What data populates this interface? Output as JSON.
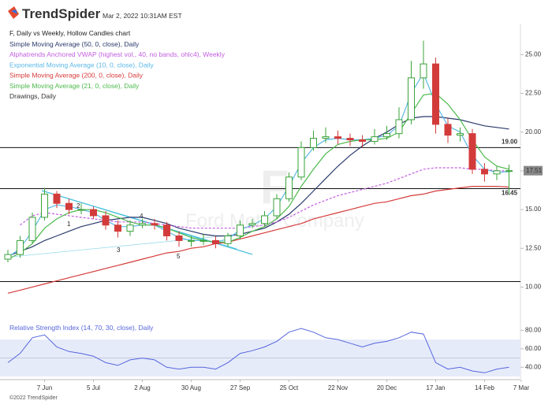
{
  "header": {
    "logo": "TrendSpider",
    "timestamp": "Mar 2, 2022 10:31AM EST",
    "chart_label": "F, Daily vs Weekly, Hollow Candles chart",
    "drawings_label": "Drawings, Daily",
    "watermark_symbol": "F",
    "watermark_name": "Ford Motor Company"
  },
  "footer": "©2022 TrendSpider",
  "chart_data": {
    "type": "candlestick",
    "categories": [
      null,
      null,
      null,
      "7 Jun",
      null,
      null,
      null,
      "5 Jul",
      null,
      null,
      null,
      "2 Aug",
      null,
      null,
      null,
      "30 Aug",
      null,
      null,
      null,
      "27 Sep",
      null,
      null,
      null,
      "25 Oct",
      null,
      null,
      null,
      "22 Nov",
      null,
      null,
      null,
      "20 Dec",
      null,
      null,
      null,
      "17 Jan",
      null,
      null,
      null,
      "14 Feb",
      null,
      null,
      "7 Mar"
    ],
    "open": [
      11.8,
      12.1,
      13.0,
      14.5,
      16.0,
      15.4,
      15.0,
      15.0,
      14.6,
      14.0,
      13.6,
      14.0,
      14.1,
      14.0,
      13.3,
      13.0,
      13.0,
      13.0,
      12.8,
      13.3,
      14.0,
      14.1,
      14.6,
      15.7,
      17.1,
      19.0,
      19.6,
      19.7,
      19.6,
      19.5,
      19.4,
      19.7,
      19.9,
      20.8,
      23.5,
      24.4,
      20.5,
      19.8,
      19.9,
      17.6,
      17.3,
      17.5,
      null
    ],
    "high": [
      12.4,
      13.3,
      14.8,
      16.4,
      16.2,
      15.7,
      15.4,
      15.2,
      14.9,
      14.3,
      14.3,
      14.4,
      14.4,
      14.2,
      13.6,
      13.3,
      13.4,
      13.3,
      13.5,
      14.3,
      14.4,
      14.9,
      16.0,
      17.4,
      19.4,
      20.1,
      20.3,
      20.1,
      19.9,
      19.8,
      20.2,
      20.4,
      21.6,
      24.6,
      25.9,
      24.8,
      20.9,
      20.3,
      20.2,
      18.0,
      17.8,
      17.9,
      null
    ],
    "low": [
      11.6,
      11.9,
      12.8,
      14.3,
      15.1,
      14.7,
      14.7,
      14.4,
      13.7,
      13.2,
      13.3,
      13.8,
      13.7,
      13.0,
      12.6,
      12.6,
      12.7,
      12.5,
      12.6,
      13.1,
      13.8,
      13.9,
      14.4,
      15.5,
      16.9,
      18.8,
      19.3,
      19.2,
      19.1,
      19.0,
      19.2,
      19.5,
      19.6,
      20.5,
      22.8,
      19.9,
      19.3,
      19.4,
      17.3,
      16.8,
      16.9,
      16.0,
      null
    ],
    "close": [
      12.1,
      13.0,
      14.5,
      16.0,
      15.4,
      15.0,
      15.0,
      14.6,
      14.0,
      13.6,
      14.0,
      14.1,
      14.0,
      13.3,
      13.0,
      13.0,
      13.0,
      12.8,
      13.3,
      14.0,
      14.1,
      14.6,
      15.7,
      17.1,
      19.0,
      19.6,
      19.7,
      19.6,
      19.5,
      19.4,
      19.7,
      19.9,
      20.8,
      23.5,
      24.4,
      20.5,
      19.8,
      19.9,
      17.6,
      17.3,
      17.5,
      17.51,
      null
    ],
    "up_color": "#3aa33a",
    "down_color": "#d33b3b",
    "series": [
      {
        "name": "Simple Moving Average (50, 0, close), Daily",
        "color": "#2b3a6c",
        "values": [
          12.0,
          12.3,
          12.6,
          13.0,
          13.3,
          13.6,
          13.9,
          14.1,
          14.3,
          14.4,
          14.5,
          14.5,
          14.3,
          14.1,
          13.8,
          13.6,
          13.4,
          13.3,
          13.3,
          13.4,
          13.6,
          13.8,
          14.2,
          14.7,
          15.4,
          16.2,
          17.0,
          17.8,
          18.5,
          19.1,
          19.6,
          20.0,
          20.5,
          20.9,
          21.0,
          21.0,
          20.9,
          20.8,
          20.6,
          20.4,
          20.3,
          20.2,
          null
        ]
      },
      {
        "name": "Alphatrends Anchored VWAP (highest vol., 40, no bands, ohlc4), Weekly",
        "color": "#c35ee0",
        "dashed": true,
        "values": [
          null,
          14.0,
          14.6,
          14.8,
          14.7,
          14.6,
          14.5,
          14.4,
          14.3,
          14.2,
          14.2,
          14.2,
          14.1,
          14.0,
          13.9,
          13.8,
          13.8,
          13.8,
          13.8,
          13.8,
          13.9,
          14.0,
          14.2,
          14.5,
          14.9,
          15.3,
          15.6,
          15.9,
          16.1,
          16.3,
          16.5,
          16.7,
          17.0,
          17.3,
          17.6,
          17.7,
          17.7,
          17.7,
          17.6,
          17.6,
          17.5,
          17.5,
          null
        ]
      },
      {
        "name": "Exponential Moving Average (10, 0, close), Daily",
        "color": "#5bb8e6",
        "values": [
          11.9,
          12.5,
          13.6,
          15.0,
          15.3,
          15.2,
          15.0,
          14.8,
          14.3,
          13.9,
          13.9,
          14.0,
          14.0,
          13.6,
          13.2,
          13.0,
          13.0,
          12.9,
          13.1,
          13.7,
          14.0,
          14.4,
          15.2,
          16.5,
          18.0,
          19.0,
          19.5,
          19.6,
          19.5,
          19.5,
          19.6,
          19.8,
          20.4,
          22.5,
          23.8,
          21.8,
          20.4,
          20.0,
          18.5,
          17.6,
          17.4,
          17.45,
          null
        ]
      },
      {
        "name": "Simple Moving Average (200, 0, close), Daily",
        "color": "#d63a3a",
        "values": [
          9.6,
          9.8,
          10.0,
          10.2,
          10.4,
          10.6,
          10.8,
          11.0,
          11.2,
          11.4,
          11.6,
          11.8,
          12.0,
          12.2,
          12.3,
          12.5,
          12.6,
          12.8,
          12.9,
          13.1,
          13.3,
          13.5,
          13.7,
          13.9,
          14.1,
          14.4,
          14.6,
          14.8,
          15.0,
          15.2,
          15.4,
          15.5,
          15.7,
          15.9,
          16.0,
          16.2,
          16.3,
          16.4,
          16.5,
          16.5,
          16.5,
          16.45,
          null
        ]
      },
      {
        "name": "Simple Moving Average (21, 0, close), Daily",
        "color": "#4dba4d",
        "values": [
          11.8,
          12.2,
          12.8,
          13.8,
          14.4,
          14.8,
          15.0,
          15.0,
          14.8,
          14.5,
          14.2,
          14.0,
          14.0,
          13.8,
          13.5,
          13.2,
          13.0,
          12.9,
          12.9,
          13.2,
          13.6,
          13.9,
          14.4,
          15.2,
          16.5,
          17.6,
          18.6,
          19.2,
          19.4,
          19.5,
          19.5,
          19.6,
          20.0,
          21.2,
          22.4,
          22.5,
          21.8,
          20.8,
          19.5,
          18.4,
          17.8,
          17.6,
          null
        ]
      }
    ],
    "levels": [
      {
        "value": 19.0,
        "label": "19.00"
      },
      {
        "value": 16.35
      },
      {
        "value": 10.35
      }
    ],
    "annotations": [
      "1",
      "2",
      "3",
      "4",
      "5"
    ],
    "ylim": [
      8.7,
      27.0
    ],
    "yticks": [
      {
        "value": 10,
        "label": "10.00"
      },
      {
        "value": 12.5,
        "label": "12.50"
      },
      {
        "value": 15,
        "label": "15.00"
      },
      {
        "value": 17.5,
        "label": "17.50"
      },
      {
        "value": 20,
        "label": "20.00"
      },
      {
        "value": 22.5,
        "label": "22.50"
      },
      {
        "value": 25,
        "label": "25.00"
      }
    ],
    "rsi": {
      "name": "Relative Strength Index (14, 70, 30, close), Daily",
      "color": "#5566dd",
      "band": [
        30,
        70
      ],
      "mid": 50,
      "values": [
        45,
        55,
        72,
        75,
        62,
        57,
        55,
        52,
        45,
        42,
        48,
        50,
        48,
        40,
        38,
        40,
        40,
        38,
        45,
        55,
        58,
        62,
        68,
        78,
        82,
        78,
        72,
        70,
        66,
        62,
        66,
        68,
        72,
        78,
        76,
        45,
        38,
        40,
        36,
        34,
        38,
        40,
        null
      ],
      "ylim": [
        30,
        88
      ],
      "yticks": [
        {
          "value": 40,
          "label": "40.00"
        },
        {
          "value": 60,
          "label": "60.00"
        },
        {
          "value": 80,
          "label": "80.00"
        }
      ]
    }
  }
}
